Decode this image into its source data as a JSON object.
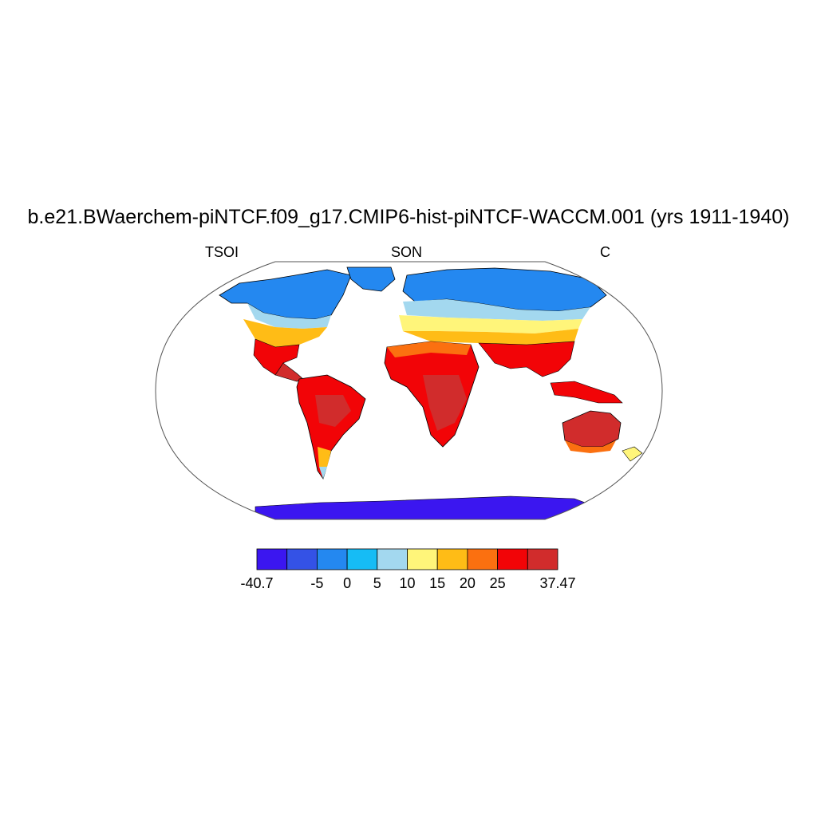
{
  "title": "b.e21.BWaerchem-piNTCF.f09_g17.CMIP6-hist-piNTCF-WACCM.001 (yrs 1911-1940)",
  "subtitles": {
    "left": "TSOI",
    "center": "SON",
    "right": "C"
  },
  "projection": "Robinson",
  "colorbar": {
    "colors": [
      "#3b16f0",
      "#3452e6",
      "#2488f0",
      "#16bcf5",
      "#a3d8ef",
      "#fff57a",
      "#ffbc16",
      "#fb7010",
      "#f20407",
      "#d12c2c"
    ],
    "labels": [
      "-40.7",
      "",
      "-5",
      "0",
      "5",
      "10",
      "15",
      "20",
      "25",
      "",
      "37.47"
    ]
  },
  "colors": {
    "ocean": "#ffffff",
    "frame": "#555555",
    "coast": "#000000"
  }
}
